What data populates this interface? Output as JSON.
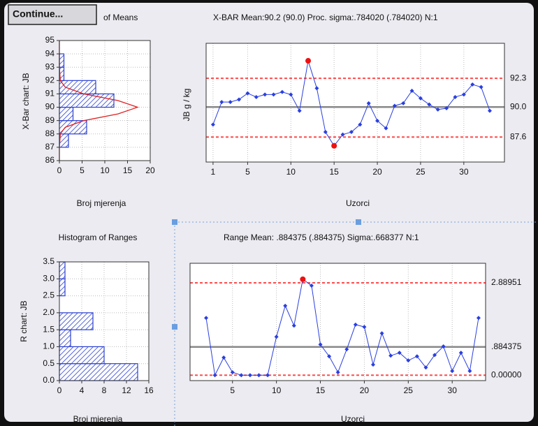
{
  "ui": {
    "button": "Continue..."
  },
  "chart_data": [
    {
      "type": "histogram",
      "orientation": "horizontal",
      "title": "of Means",
      "xlabel": "Broj mjerenja",
      "ylabel": "X-Bar chart: JB",
      "bins": [
        87,
        88,
        89,
        90,
        91,
        92,
        93,
        94
      ],
      "values": [
        2,
        6,
        3,
        12,
        8,
        1,
        1
      ],
      "color": "#2a3fd0",
      "curve": {
        "color": "#e02020",
        "at": [
          86,
          87,
          88,
          88.5,
          89,
          89.5,
          90,
          90.5,
          91,
          91.5,
          92,
          93,
          94,
          95
        ],
        "values": [
          0,
          0,
          0.2,
          1.3,
          5.4,
          12.9,
          17.2,
          12.9,
          5.4,
          1.3,
          0.2,
          0,
          0,
          0
        ]
      },
      "xlim": [
        0,
        20
      ],
      "xticks": [
        0,
        5,
        10,
        15,
        20
      ],
      "ylim": [
        86,
        95
      ],
      "yticks": [
        86,
        87,
        88,
        89,
        90,
        91,
        92,
        93,
        94,
        95
      ],
      "grid": true
    },
    {
      "type": "line",
      "title": "X-BAR Mean:90.2 (90.0) Proc. sigma:.784020 (.784020) N:1",
      "xlabel": "Uzorci",
      "ylabel": "JB  g / kg",
      "x": [
        1,
        2,
        3,
        4,
        5,
        6,
        7,
        8,
        9,
        10,
        11,
        12,
        13,
        14,
        15,
        16,
        17,
        18,
        19,
        20,
        21,
        22,
        23,
        24,
        25,
        26,
        27,
        28,
        29,
        30,
        31,
        32,
        33
      ],
      "series": [
        {
          "color": "#2a3fe0",
          "outlier_color": "#ee1111",
          "values": [
            88.6,
            90.4,
            90.4,
            90.6,
            91.1,
            90.8,
            91.0,
            91.0,
            91.2,
            91.0,
            89.7,
            93.7,
            91.5,
            88.0,
            86.9,
            87.8,
            88.0,
            88.6,
            90.3,
            88.9,
            88.3,
            90.1,
            90.3,
            91.3,
            90.7,
            90.2,
            89.8,
            89.9,
            90.8,
            91.0,
            91.8,
            91.6,
            89.7
          ]
        }
      ],
      "center_line": {
        "value": 90.0,
        "label": "90.0",
        "color": "#888888"
      },
      "limit_lines": [
        {
          "value": 92.3,
          "label": "92.3",
          "color": "#ff4a4a"
        },
        {
          "value": 87.6,
          "label": "87.6",
          "color": "#ff4a4a"
        }
      ],
      "xlim": [
        0.2,
        34.7
      ],
      "xticks": [
        1,
        5,
        10,
        15,
        20,
        25,
        30
      ],
      "ylim": [
        85.6,
        95.1
      ],
      "grid": true
    },
    {
      "type": "histogram",
      "orientation": "horizontal",
      "title": "Histogram of Ranges",
      "xlabel": "Broj mjerenja",
      "ylabel": "R chart: JB",
      "bins": [
        0,
        0.5,
        1.0,
        1.5,
        2.0,
        2.5,
        3.0,
        3.5
      ],
      "values": [
        14,
        8,
        2,
        6,
        0,
        1,
        1
      ],
      "color": "#2a3fd0",
      "xlim": [
        0,
        16
      ],
      "xticks": [
        0,
        4,
        8,
        12,
        16
      ],
      "ylim": [
        0,
        3.5
      ],
      "yticks": [
        {
          "value": 0,
          "label": "0.0"
        },
        {
          "value": 0.5,
          "label": "0.5"
        },
        {
          "value": 1,
          "label": "1.0"
        },
        {
          "value": 1.5,
          "label": "1.5"
        },
        {
          "value": 2,
          "label": "2.0"
        },
        {
          "value": 2.5,
          "label": "2.5"
        },
        {
          "value": 3,
          "label": "3.0"
        },
        {
          "value": 3.5,
          "label": "3.5"
        }
      ],
      "grid": true
    },
    {
      "type": "line",
      "title": "Range Mean: .884375 (.884375) Sigma:.668377 N:1",
      "xlabel": "Uzorci",
      "x": [
        2,
        3,
        4,
        5,
        6,
        7,
        8,
        9,
        10,
        11,
        12,
        13,
        14,
        15,
        16,
        17,
        18,
        19,
        20,
        21,
        22,
        23,
        24,
        25,
        26,
        27,
        28,
        29,
        30,
        31,
        32,
        33
      ],
      "series": [
        {
          "color": "#2a3fe0",
          "outlier_color": "#ee1111",
          "values": [
            1.79,
            0,
            0.55,
            0.09,
            0,
            0,
            0,
            0,
            1.2,
            2.17,
            1.55,
            3.0,
            2.8,
            0.96,
            0.59,
            0.09,
            0.81,
            1.58,
            1.51,
            0.33,
            1.31,
            0.61,
            0.7,
            0.46,
            0.59,
            0.24,
            0.63,
            0.9,
            0.13,
            0.7,
            0.13,
            1.79
          ]
        }
      ],
      "center_line": {
        "value": 0.884375,
        "label": ".884375",
        "color": "#888888"
      },
      "limit_lines": [
        {
          "value": 2.88951,
          "label": "2.88951",
          "color": "#ff4a4a"
        },
        {
          "value": 0,
          "label": "0.00000",
          "color": "#ff4a4a"
        }
      ],
      "xlim": [
        0.17,
        33.8
      ],
      "xticks": [
        5,
        10,
        15,
        20,
        25,
        30
      ],
      "ylim": [
        -0.17,
        3.5
      ],
      "grid": true
    }
  ]
}
